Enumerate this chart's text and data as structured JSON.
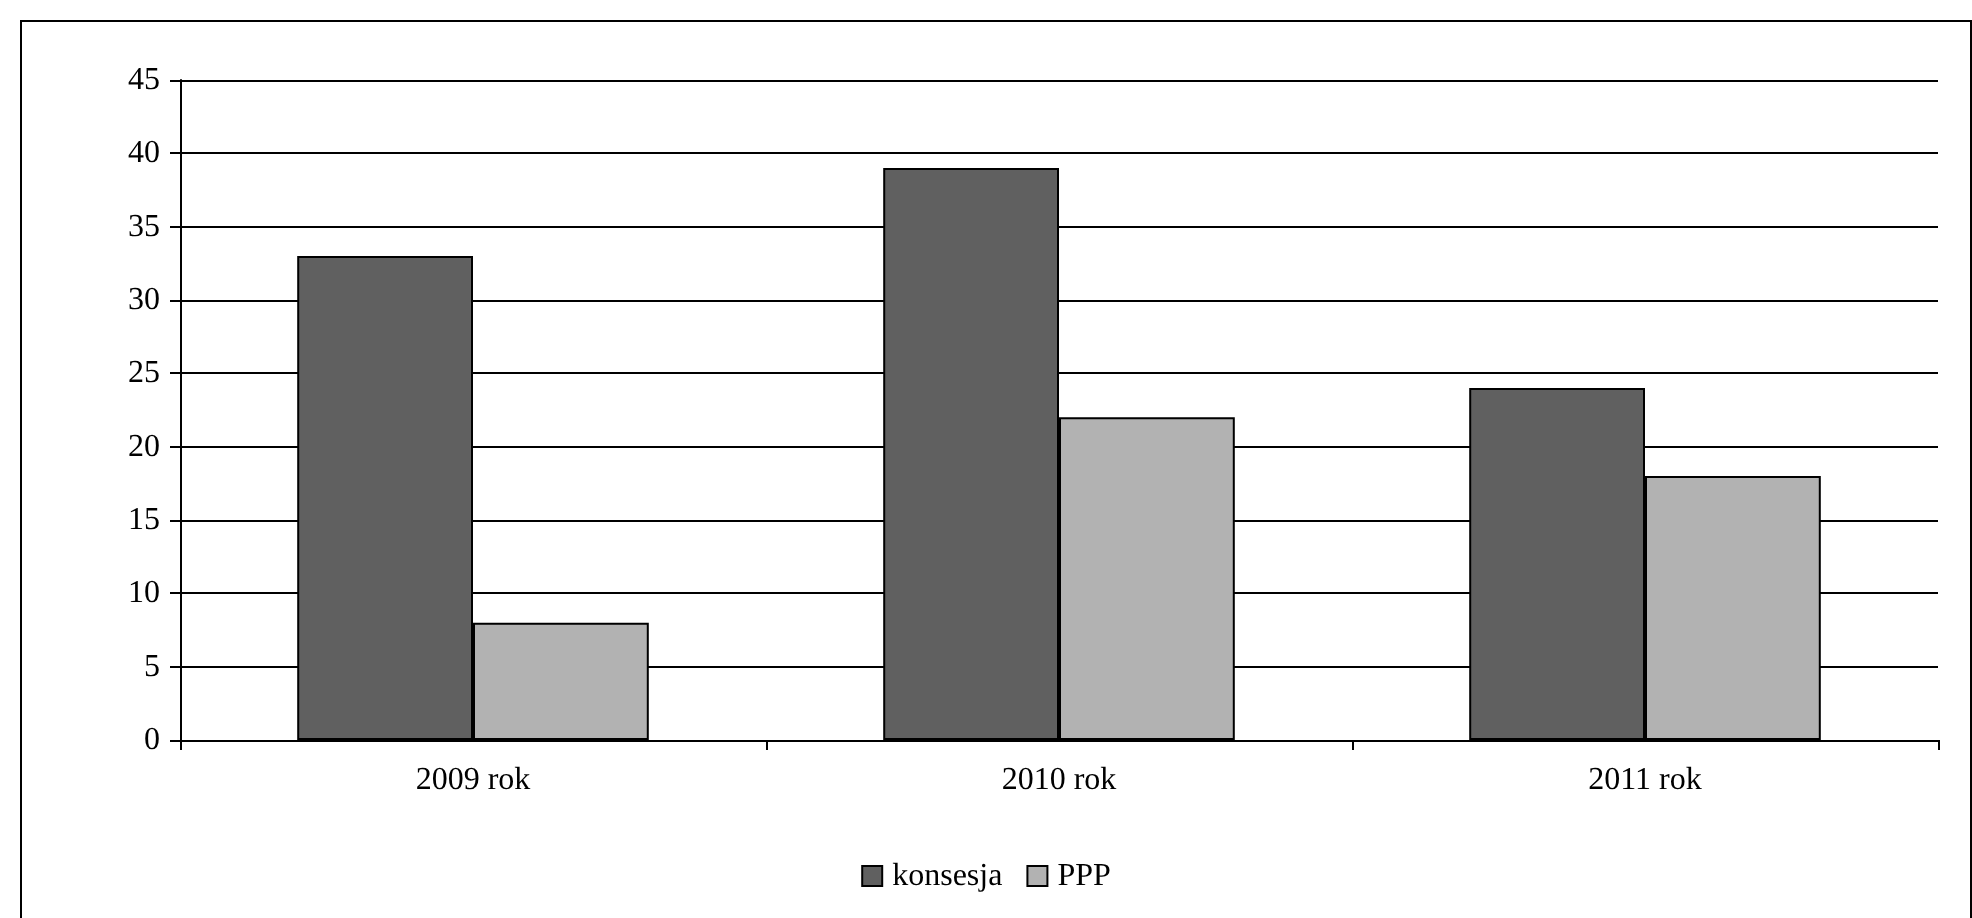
{
  "chart_data": {
    "type": "bar",
    "categories": [
      "2009 rok",
      "2010 rok",
      "2011 rok"
    ],
    "series": [
      {
        "name": "konsesja",
        "color": "#606060",
        "values": [
          33,
          39,
          24
        ]
      },
      {
        "name": "PPP",
        "color": "#b2b2b2",
        "values": [
          8,
          22,
          18
        ]
      }
    ],
    "ylim": [
      0,
      45
    ],
    "yticks": [
      0,
      5,
      10,
      15,
      20,
      25,
      30,
      35,
      40,
      45
    ],
    "grid": "y",
    "legend": "bottom"
  }
}
